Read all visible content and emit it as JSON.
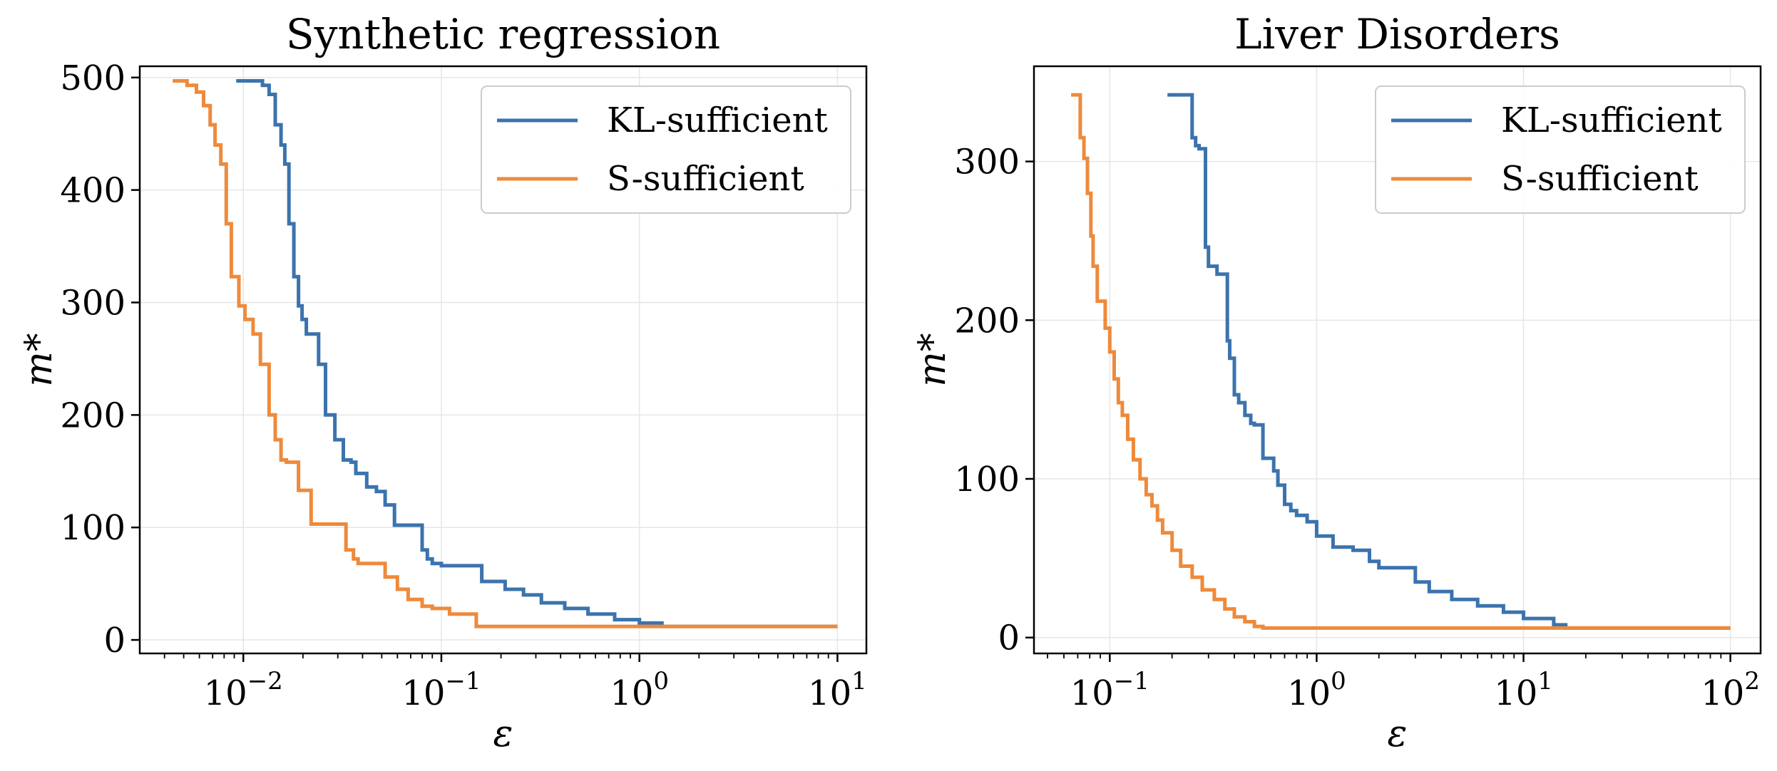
{
  "chart_data": [
    {
      "type": "line",
      "title": "Synthetic regression",
      "xlabel": "ε",
      "ylabel": "m*",
      "xscale": "log",
      "xlim": [
        0.003,
        14
      ],
      "ylim": [
        -12,
        510
      ],
      "xticks": [
        {
          "value": 0.01,
          "base": "10",
          "exp": "−2"
        },
        {
          "value": 0.1,
          "base": "10",
          "exp": "−1"
        },
        {
          "value": 1,
          "base": "10",
          "exp": "0"
        },
        {
          "value": 10,
          "base": "10",
          "exp": "1"
        }
      ],
      "yticks": [
        {
          "value": 0,
          "label": "0"
        },
        {
          "value": 100,
          "label": "100"
        },
        {
          "value": 200,
          "label": "200"
        },
        {
          "value": 300,
          "label": "300"
        },
        {
          "value": 400,
          "label": "400"
        },
        {
          "value": 500,
          "label": "500"
        }
      ],
      "grid": true,
      "legend": "top-right",
      "series": [
        {
          "name": "KL-sufficient",
          "color": "#3b73ad",
          "x": [
            0.0092,
            0.0125,
            0.0135,
            0.0145,
            0.0155,
            0.0162,
            0.017,
            0.018,
            0.019,
            0.0198,
            0.0208,
            0.022,
            0.024,
            0.026,
            0.029,
            0.032,
            0.035,
            0.037,
            0.042,
            0.047,
            0.052,
            0.058,
            0.062,
            0.08,
            0.085,
            0.09,
            0.1,
            0.12,
            0.16,
            0.21,
            0.26,
            0.32,
            0.42,
            0.55,
            0.75,
            1.0,
            1.3,
            10
          ],
          "y": [
            497,
            493,
            485,
            458,
            440,
            423,
            370,
            323,
            297,
            285,
            272,
            272,
            245,
            200,
            178,
            160,
            158,
            148,
            136,
            132,
            120,
            102,
            102,
            80,
            72,
            68,
            66,
            66,
            52,
            45,
            40,
            33,
            28,
            23,
            18,
            15,
            12,
            12
          ]
        },
        {
          "name": "S-sufficient",
          "color": "#ee8a3b",
          "x": [
            0.0044,
            0.0052,
            0.0058,
            0.0063,
            0.0068,
            0.0072,
            0.0077,
            0.0082,
            0.0087,
            0.0095,
            0.0102,
            0.0112,
            0.0122,
            0.0135,
            0.0145,
            0.0155,
            0.0165,
            0.019,
            0.022,
            0.026,
            0.033,
            0.036,
            0.038,
            0.052,
            0.06,
            0.068,
            0.08,
            0.09,
            0.11,
            0.15,
            0.2,
            10
          ],
          "y": [
            497,
            493,
            487,
            475,
            458,
            440,
            423,
            370,
            323,
            297,
            285,
            272,
            245,
            200,
            178,
            160,
            158,
            133,
            103,
            103,
            80,
            72,
            68,
            56,
            45,
            36,
            30,
            28,
            23,
            12,
            12,
            12
          ]
        }
      ]
    },
    {
      "type": "line",
      "title": "Liver Disorders",
      "xlabel": "ε",
      "ylabel": "m*",
      "xscale": "log",
      "xlim": [
        0.043,
        140
      ],
      "ylim": [
        -10,
        360
      ],
      "xticks": [
        {
          "value": 0.1,
          "base": "10",
          "exp": "−1"
        },
        {
          "value": 1,
          "base": "10",
          "exp": "0"
        },
        {
          "value": 10,
          "base": "10",
          "exp": "1"
        },
        {
          "value": 100,
          "base": "10",
          "exp": "2"
        }
      ],
      "yticks": [
        {
          "value": 0,
          "label": "0"
        },
        {
          "value": 100,
          "label": "100"
        },
        {
          "value": 200,
          "label": "200"
        },
        {
          "value": 300,
          "label": "300"
        }
      ],
      "grid": true,
      "legend": "top-right",
      "series": [
        {
          "name": "KL-sufficient",
          "color": "#3b73ad",
          "x": [
            0.19,
            0.25,
            0.26,
            0.27,
            0.29,
            0.3,
            0.33,
            0.37,
            0.38,
            0.4,
            0.42,
            0.45,
            0.48,
            0.5,
            0.55,
            0.62,
            0.65,
            0.7,
            0.75,
            0.8,
            0.9,
            1.0,
            1.2,
            1.5,
            1.8,
            2.0,
            3.0,
            3.5,
            4.5,
            6.0,
            8.0,
            10.0,
            14.0,
            16.0,
            100
          ],
          "y": [
            342,
            315,
            310,
            308,
            246,
            234,
            229,
            187,
            176,
            153,
            148,
            140,
            135,
            134,
            113,
            105,
            96,
            84,
            80,
            77,
            73,
            64,
            57,
            55,
            48,
            44,
            35,
            29,
            24,
            20,
            16,
            12,
            8,
            6,
            6
          ]
        },
        {
          "name": "S-sufficient",
          "color": "#ee8a3b",
          "x": [
            0.065,
            0.072,
            0.075,
            0.078,
            0.081,
            0.083,
            0.087,
            0.095,
            0.1,
            0.105,
            0.11,
            0.115,
            0.122,
            0.13,
            0.14,
            0.15,
            0.16,
            0.17,
            0.18,
            0.2,
            0.22,
            0.25,
            0.28,
            0.32,
            0.36,
            0.4,
            0.45,
            0.5,
            0.55,
            0.6,
            0.63,
            0.66,
            100
          ],
          "y": [
            342,
            315,
            302,
            280,
            253,
            234,
            212,
            195,
            180,
            163,
            148,
            140,
            125,
            112,
            100,
            90,
            83,
            74,
            66,
            55,
            45,
            38,
            30,
            24,
            18,
            13,
            10,
            7,
            6,
            6,
            6,
            6,
            6
          ]
        }
      ]
    }
  ]
}
